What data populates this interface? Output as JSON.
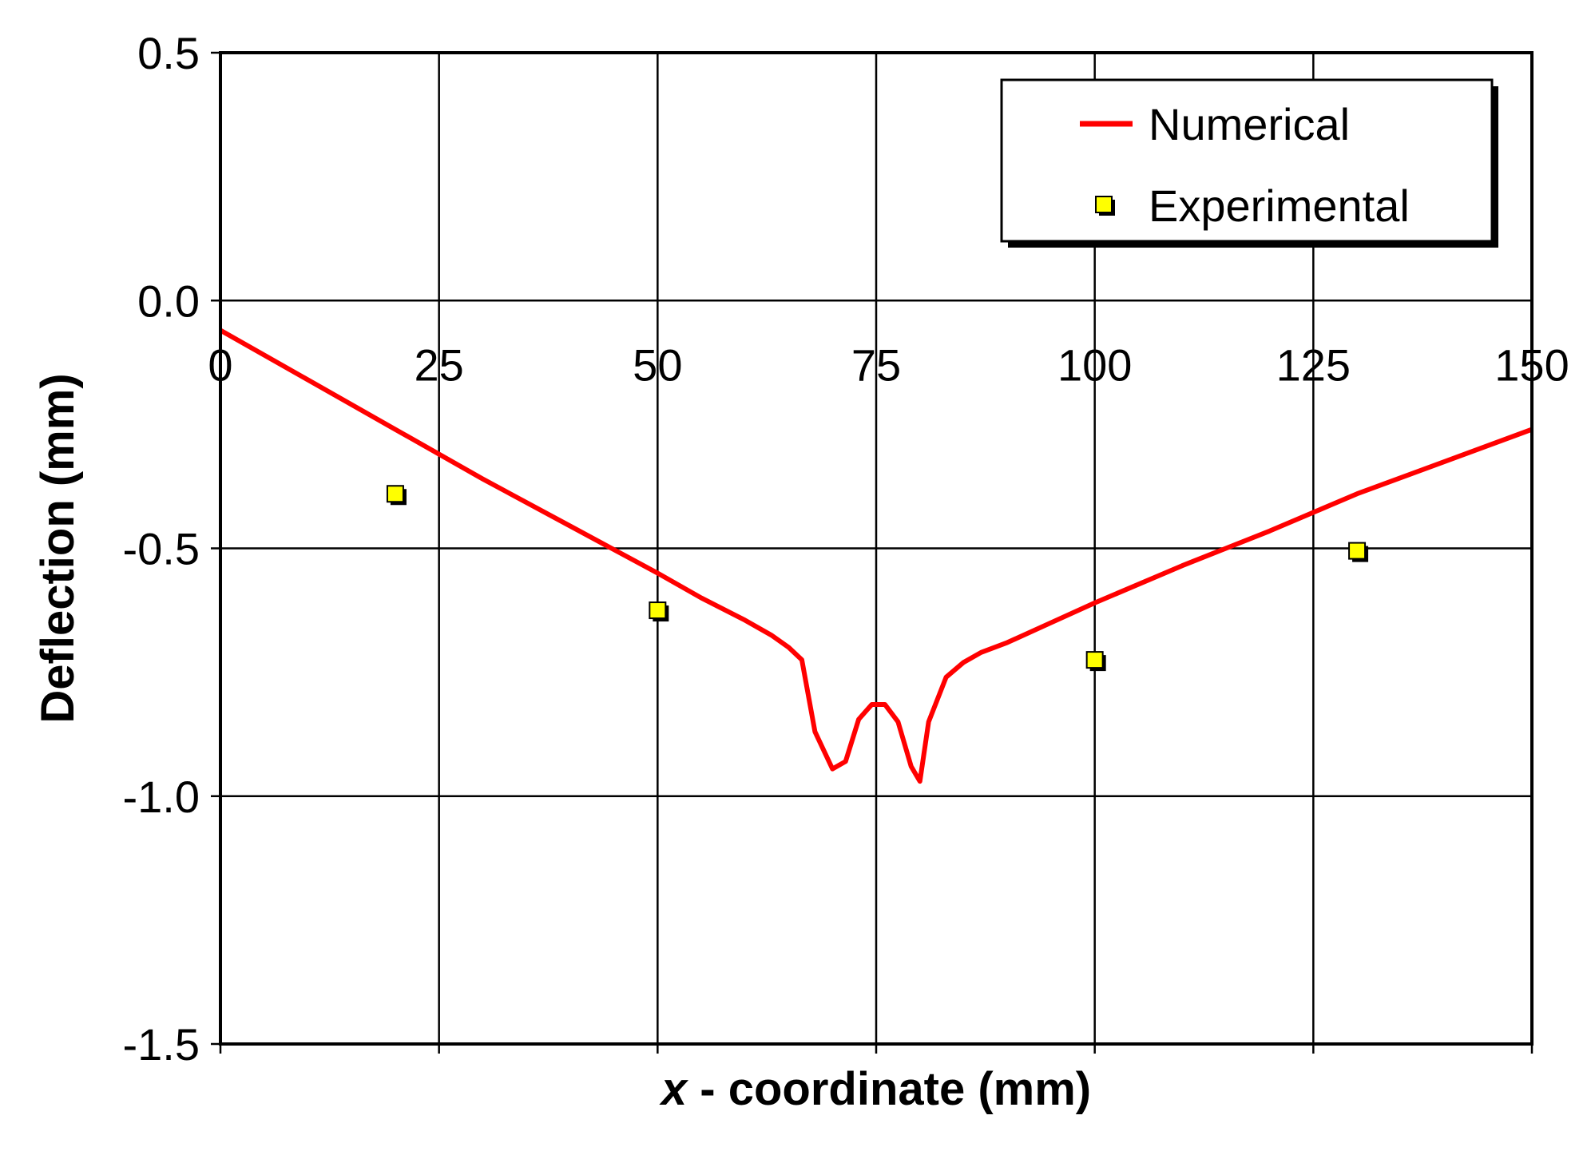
{
  "chart_data": {
    "type": "line",
    "title": "",
    "xlabel_var": "x",
    "xlabel_rest": " - coordinate (mm)",
    "ylabel": "Deflection (mm)",
    "xlim": [
      0,
      150
    ],
    "ylim": [
      -1.5,
      0.5
    ],
    "xticks": [
      0,
      25,
      50,
      75,
      100,
      125,
      150
    ],
    "yticks": [
      0.5,
      0.0,
      -0.5,
      -1.0,
      -1.5
    ],
    "ytick_labels": [
      "0.5",
      "0.0",
      "-0.5",
      "-1.0",
      "-1.5"
    ],
    "grid": true,
    "legend_position": "top-right",
    "series": [
      {
        "name": "Numerical",
        "type": "line",
        "color": "#ff0000",
        "x": [
          0,
          10,
          20,
          30,
          40,
          50,
          55,
          60,
          63,
          65,
          66.5,
          68,
          70,
          71.5,
          73,
          74.5,
          76,
          77.5,
          79,
          80,
          81,
          83,
          85,
          87,
          90,
          95,
          100,
          110,
          120,
          130,
          140,
          150
        ],
        "y": [
          -0.06,
          -0.16,
          -0.26,
          -0.36,
          -0.455,
          -0.55,
          -0.6,
          -0.645,
          -0.675,
          -0.7,
          -0.725,
          -0.87,
          -0.945,
          -0.93,
          -0.845,
          -0.815,
          -0.815,
          -0.85,
          -0.94,
          -0.97,
          -0.85,
          -0.76,
          -0.73,
          -0.71,
          -0.69,
          -0.65,
          -0.61,
          -0.535,
          -0.465,
          -0.39,
          -0.325,
          -0.26
        ]
      },
      {
        "name": "Experimental",
        "type": "scatter",
        "color": "#ffff00",
        "x": [
          20,
          50,
          100,
          130
        ],
        "y": [
          -0.39,
          -0.625,
          -0.725,
          -0.505
        ]
      }
    ]
  }
}
